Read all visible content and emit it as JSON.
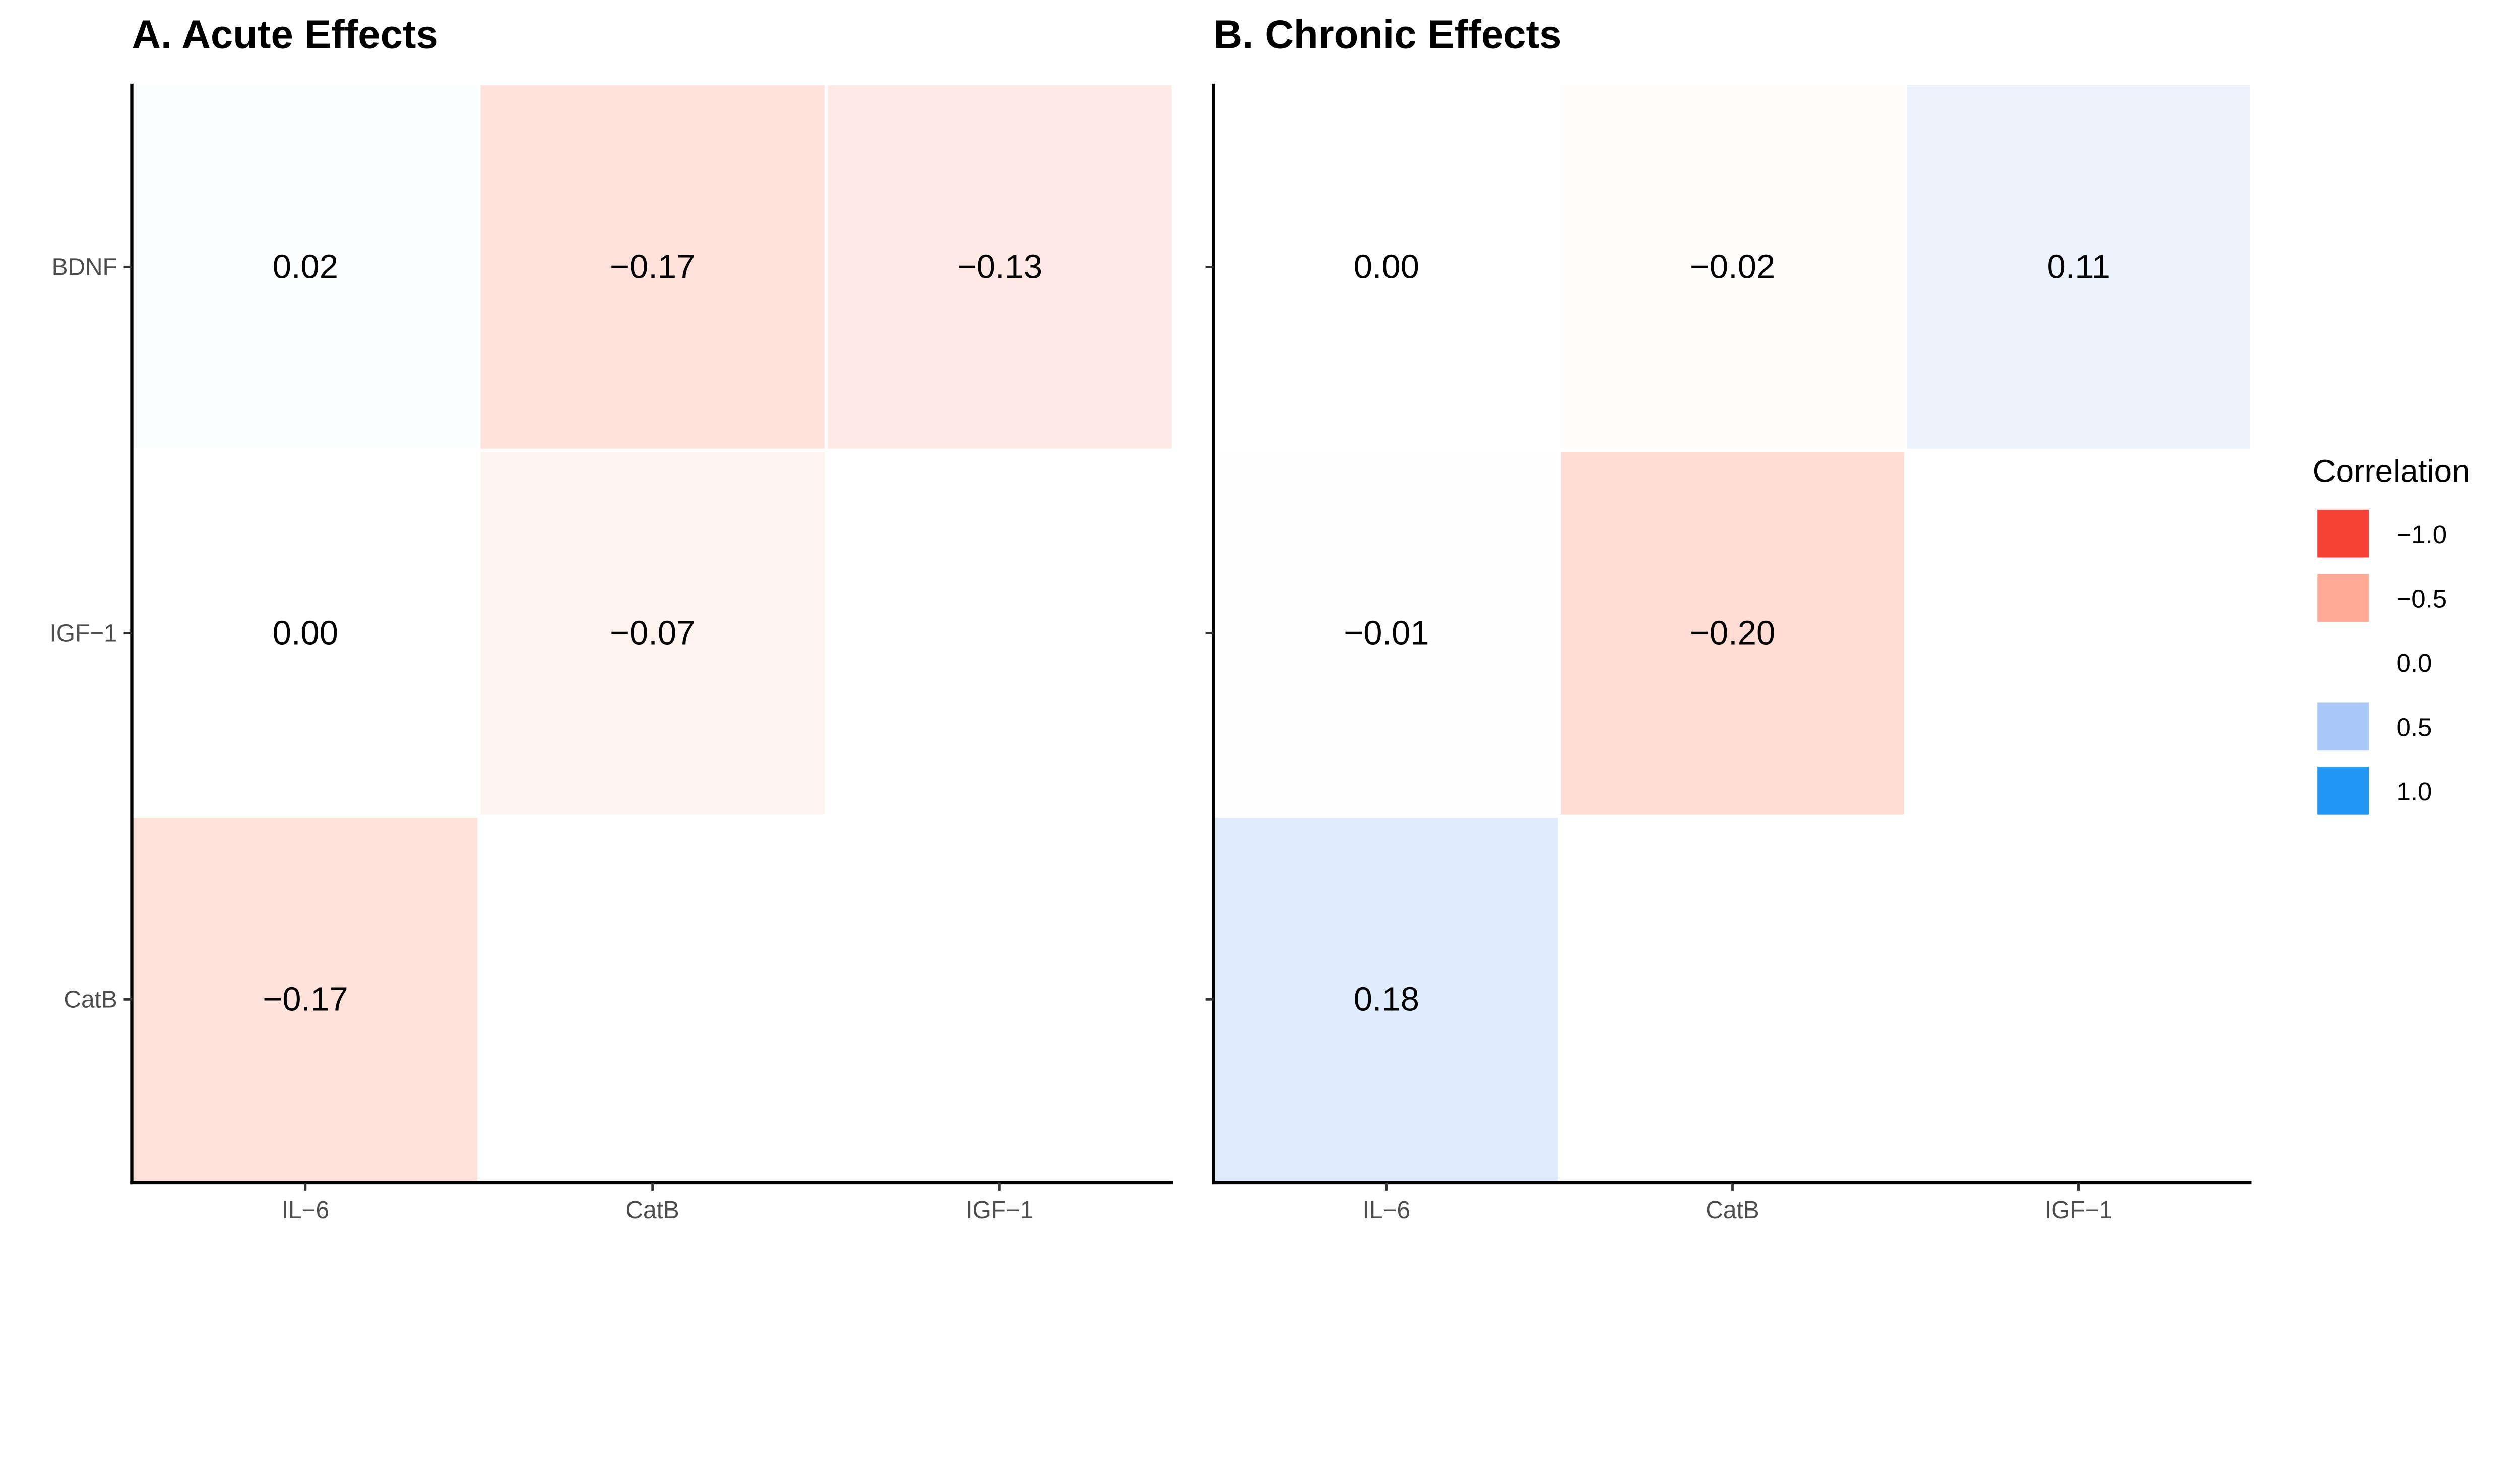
{
  "chart_data": [
    {
      "type": "heatmap",
      "title": "A. Acute Effects",
      "x_categories": [
        "IL−6",
        "CatB",
        "IGF−1"
      ],
      "y_categories": [
        "BDNF",
        "IGF−1",
        "CatB"
      ],
      "values": [
        [
          0.02,
          -0.17,
          -0.13
        ],
        [
          0.0,
          -0.07,
          null
        ],
        [
          -0.17,
          null,
          null
        ]
      ],
      "labels": [
        [
          "0.02",
          "−0.17",
          "−0.13"
        ],
        [
          "0.00",
          "−0.07",
          ""
        ],
        [
          "−0.17",
          "",
          ""
        ]
      ]
    },
    {
      "type": "heatmap",
      "title": "B. Chronic Effects",
      "x_categories": [
        "IL−6",
        "CatB",
        "IGF−1"
      ],
      "y_categories": [
        "BDNF",
        "IGF−1",
        "CatB"
      ],
      "values": [
        [
          0.0,
          -0.02,
          0.11
        ],
        [
          -0.01,
          -0.2,
          null
        ],
        [
          0.18,
          null,
          null
        ]
      ],
      "labels": [
        [
          "0.00",
          "−0.02",
          "0.11"
        ],
        [
          "−0.01",
          "−0.20",
          ""
        ],
        [
          "0.18",
          "",
          ""
        ]
      ]
    }
  ],
  "legend": {
    "title": "Correlation",
    "placement": "right",
    "range": [
      -1,
      1
    ],
    "entries": [
      {
        "value": -1.0,
        "label": "−1.0",
        "color": "#F44336"
      },
      {
        "value": -0.5,
        "label": "−0.5",
        "color": "#FFAA97"
      },
      {
        "value": 0.0,
        "label": "0.0",
        "color": "#FFFFFF"
      },
      {
        "value": 0.5,
        "label": "0.5",
        "color": "#AAC8F8"
      },
      {
        "value": 1.0,
        "label": "1.0",
        "color": "#2196F3"
      }
    ]
  }
}
